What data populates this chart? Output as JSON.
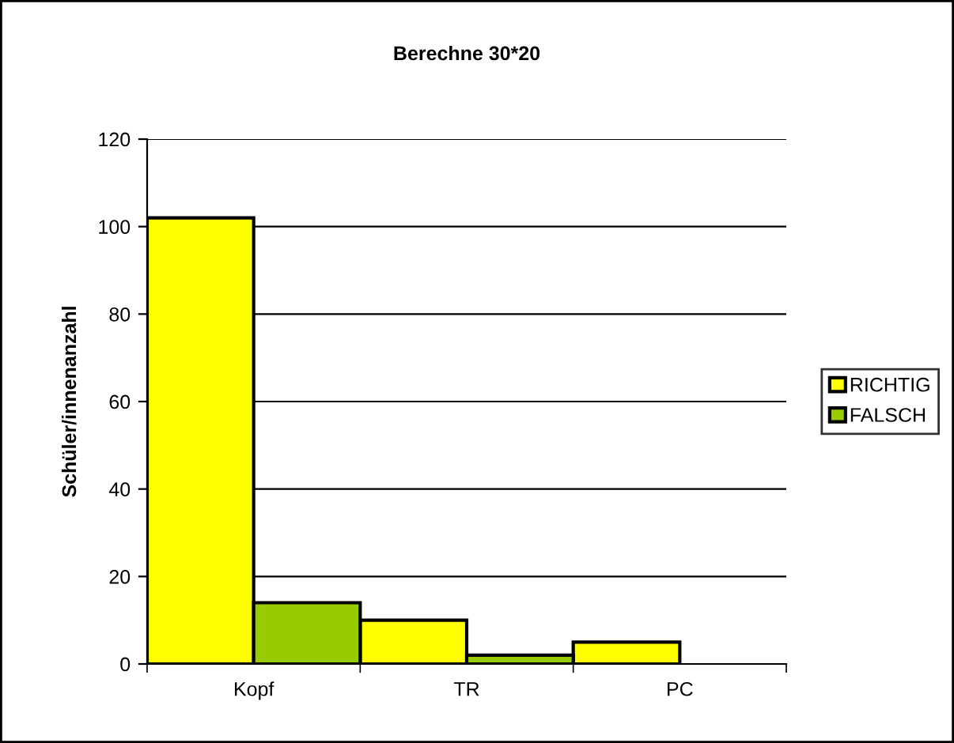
{
  "chart_data": {
    "type": "bar",
    "title": "Berechne 30*20",
    "ylabel": "Schüler/innenanzahl",
    "categories": [
      "Kopf",
      "TR",
      "PC"
    ],
    "series": [
      {
        "name": "RICHTIG",
        "color": "#ffff00",
        "values": [
          102,
          10,
          5
        ]
      },
      {
        "name": "FALSCH",
        "color": "#99cc00",
        "values": [
          14,
          2,
          null
        ]
      }
    ],
    "ylim": [
      0,
      120
    ],
    "yticks": [
      0,
      20,
      40,
      60,
      80,
      100,
      120
    ],
    "grid": "y",
    "legend": "right"
  }
}
